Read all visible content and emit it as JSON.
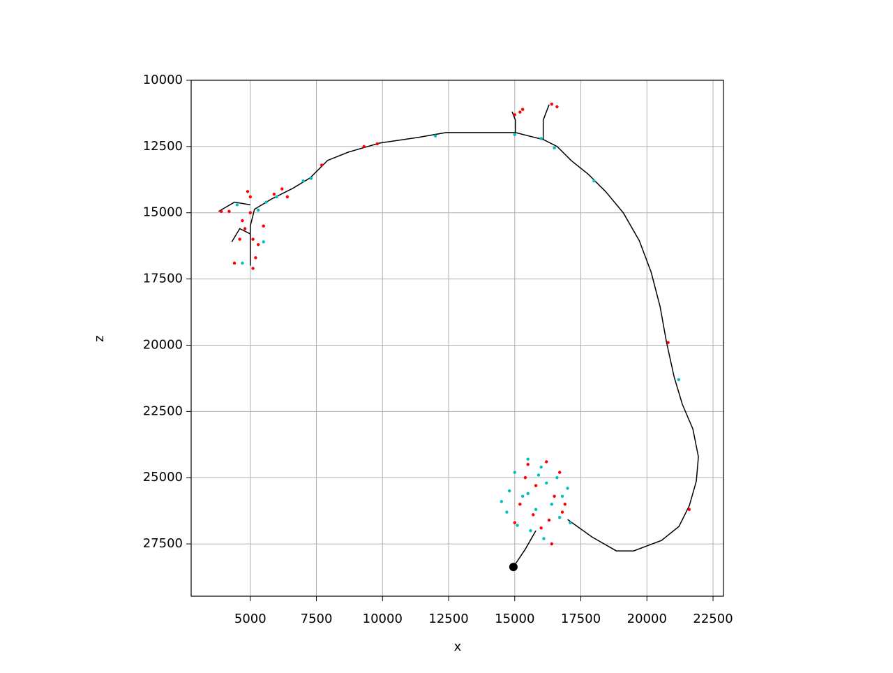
{
  "chart_data": {
    "type": "scatter",
    "xlabel": "x",
    "ylabel": "z",
    "xlim": [
      2763,
      22895
    ],
    "ylim": [
      29474,
      10000
    ],
    "xticks": [
      5000,
      7500,
      10000,
      12500,
      15000,
      17500,
      20000,
      22500
    ],
    "yticks": [
      10000,
      12500,
      15000,
      17500,
      20000,
      22500,
      25000,
      27500
    ],
    "grid": true,
    "series": [
      {
        "type": "line",
        "color": "#000000",
        "x": [
          5158,
          5816,
          6605,
          7263,
          7921,
          8711,
          9895,
          11342,
          12395,
          13711,
          15026,
          16079,
          16605,
          17132,
          17789,
          18447,
          19105,
          19711,
          20158,
          20500,
          20737,
          21026,
          21342,
          21737,
          21947,
          21868,
          21605,
          21211,
          20553,
          19500,
          18842,
          17921,
          17000,
          null,
          15026,
          15026,
          14900,
          null,
          16079,
          16079,
          16300,
          null,
          14950,
          15400,
          15800,
          null,
          5158,
          5000,
          5000,
          null,
          5000,
          4400,
          3800,
          null,
          5000,
          4600,
          4300
        ],
        "values": [
          14868,
          14474,
          14079,
          13684,
          13026,
          12711,
          12368,
          12158,
          11974,
          11974,
          11974,
          12237,
          12500,
          13026,
          13553,
          14211,
          15000,
          16053,
          17237,
          18553,
          19868,
          21184,
          22237,
          23158,
          24211,
          25132,
          26053,
          26842,
          27368,
          27763,
          27763,
          27237,
          26579,
          null,
          11974,
          11500,
          11184,
          null,
          12237,
          11500,
          10921,
          null,
          28370,
          27700,
          27000,
          null,
          14868,
          15500,
          17000,
          null,
          14700,
          14600,
          14950,
          null,
          15800,
          15600,
          16100
        ]
      },
      {
        "type": "scatter",
        "color": "#00bfbf",
        "marker_size": 2.2,
        "x": [
          4500,
          5300,
          5600,
          6000,
          7000,
          7300,
          4700,
          5500,
          12000,
          15000,
          16000,
          16500,
          18000,
          21200,
          17100,
          14500,
          15000,
          15500,
          16000,
          16600,
          17000,
          14800,
          15300,
          15800,
          16200,
          16700,
          15100,
          15600,
          16100,
          15500,
          16400,
          14700,
          16800,
          15900
        ],
        "values": [
          14700,
          14900,
          14600,
          14400,
          13800,
          13700,
          16900,
          16100,
          12100,
          12050,
          12200,
          12550,
          13800,
          21300,
          26700,
          25900,
          24800,
          24300,
          24600,
          25000,
          25400,
          25500,
          25700,
          26200,
          25200,
          26500,
          26800,
          27000,
          27300,
          25600,
          26000,
          26300,
          25700,
          24900
        ]
      },
      {
        "type": "scatter",
        "color": "#ff0000",
        "marker_size": 2.2,
        "x": [
          4900,
          5000,
          4700,
          4800,
          5100,
          5300,
          5500,
          5200,
          5100,
          4400,
          3900,
          4200,
          4600,
          5000,
          6200,
          6400,
          5900,
          7700,
          9800,
          9300,
          15000,
          15200,
          15300,
          16400,
          16600,
          20800,
          21600,
          15500,
          16200,
          16700,
          15800,
          16500,
          15200,
          15700,
          16300,
          16800,
          15000,
          16000,
          16400,
          15400,
          16900
        ],
        "values": [
          14200,
          14400,
          15300,
          15600,
          16000,
          16200,
          15500,
          16700,
          17100,
          16900,
          14950,
          14950,
          16000,
          15000,
          14100,
          14400,
          14300,
          13200,
          12400,
          12500,
          11300,
          11200,
          11100,
          10900,
          11000,
          19900,
          26200,
          24500,
          24400,
          24800,
          25300,
          25700,
          26000,
          26400,
          26600,
          26300,
          26700,
          26900,
          27500,
          25000,
          26000
        ]
      },
      {
        "type": "scatter",
        "color": "#000000",
        "marker_size": 6,
        "x": [
          14950
        ],
        "values": [
          28370
        ]
      }
    ]
  }
}
